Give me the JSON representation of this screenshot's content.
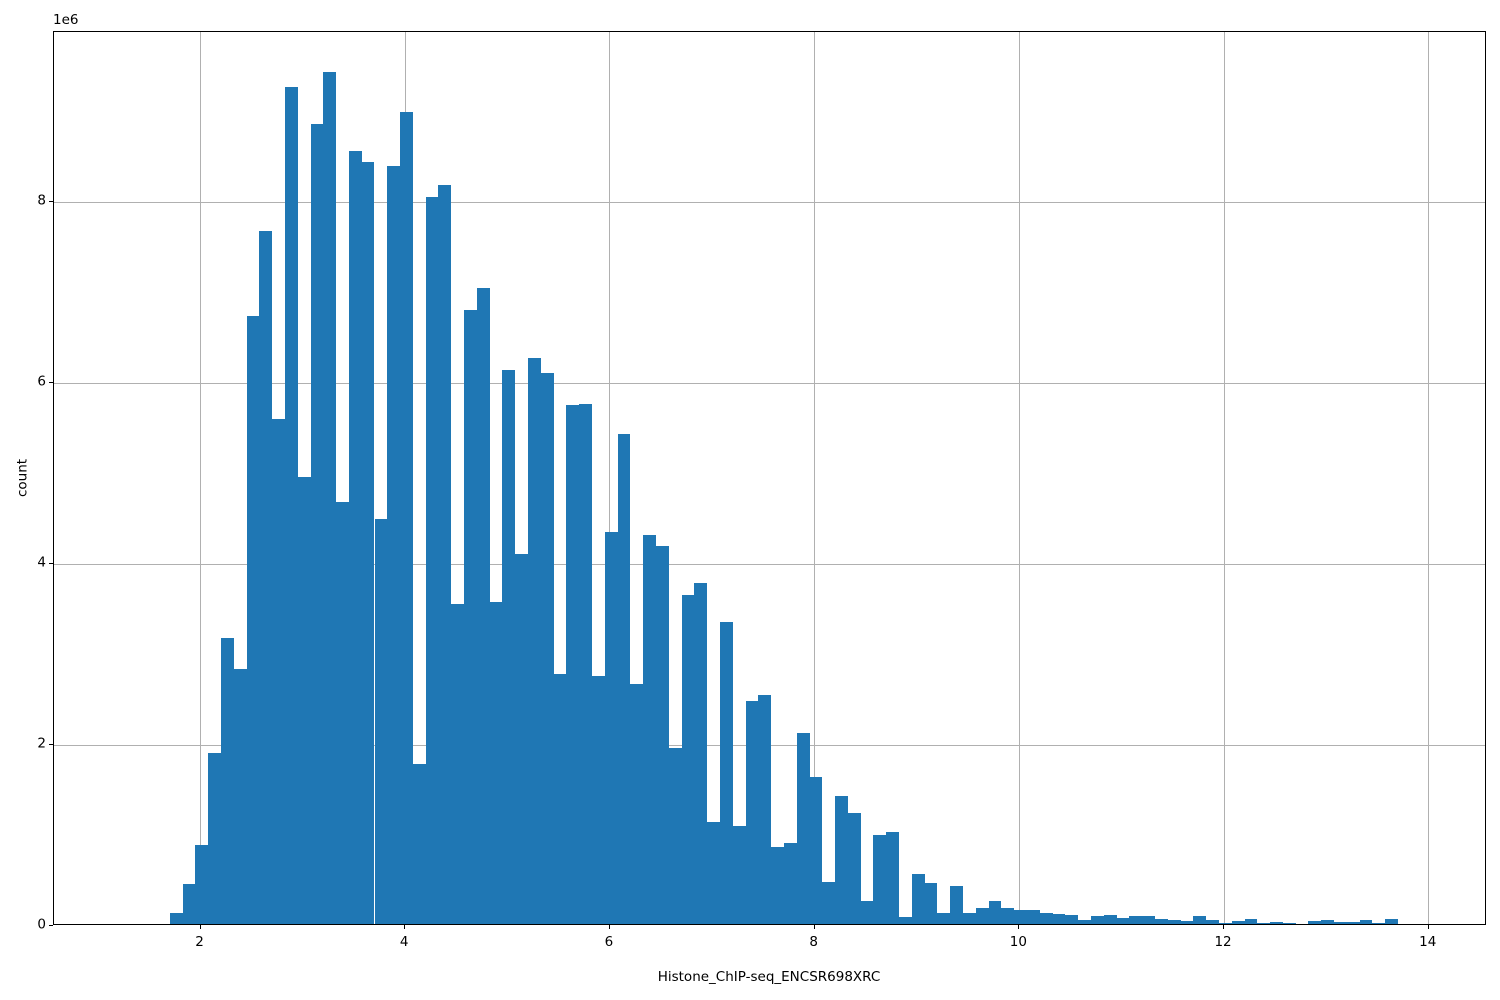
{
  "chart_data": {
    "type": "bar",
    "subtype": "histogram",
    "title": "",
    "xlabel": "Histone_ChIP-seq_ENCSR698XRC",
    "ylabel": "count",
    "y_offset_text": "1e6",
    "legend": null,
    "grid": true,
    "bar_color": "#1f77b4",
    "grid_color": "#b0b0b0",
    "spine_color": "#000000",
    "xlim": [
      0.5686,
      14.569
    ],
    "ylim": [
      0,
      9879000
    ],
    "x_ticks": [
      2,
      4,
      6,
      8,
      10,
      12,
      14
    ],
    "x_tick_labels": [
      "2",
      "4",
      "6",
      "8",
      "10",
      "12",
      "14"
    ],
    "y_ticks": [
      0,
      2000000,
      4000000,
      6000000,
      8000000
    ],
    "y_tick_labels": [
      "0",
      "2",
      "4",
      "6",
      "8"
    ],
    "bin_start": 1.7,
    "bin_width": 0.125,
    "counts": [
      120000,
      440000,
      870000,
      1890000,
      3160000,
      2820000,
      6720000,
      7660000,
      5580000,
      9250000,
      4940000,
      8840000,
      9420000,
      4660000,
      8540000,
      8420000,
      4480000,
      8380000,
      8970000,
      1770000,
      8030000,
      8170000,
      3540000,
      6790000,
      7030000,
      3560000,
      6120000,
      4090000,
      6260000,
      6090000,
      2760000,
      5740000,
      5750000,
      2740000,
      4330000,
      5420000,
      2650000,
      4300000,
      4180000,
      1950000,
      3640000,
      3770000,
      1130000,
      3340000,
      1080000,
      2460000,
      2530000,
      850000,
      890000,
      2110000,
      1620000,
      460000,
      1420000,
      1230000,
      250000,
      980000,
      1020000,
      80000,
      550000,
      450000,
      120000,
      420000,
      120000,
      180000,
      250000,
      180000,
      160000,
      160000,
      120000,
      110000,
      100000,
      40000,
      90000,
      100000,
      65000,
      90000,
      90000,
      50000,
      45000,
      35000,
      90000,
      45000,
      10000,
      35000,
      55000,
      10000,
      25000,
      8000,
      5000,
      35000,
      48000,
      20000,
      26000,
      40000,
      8000,
      55000
    ]
  }
}
